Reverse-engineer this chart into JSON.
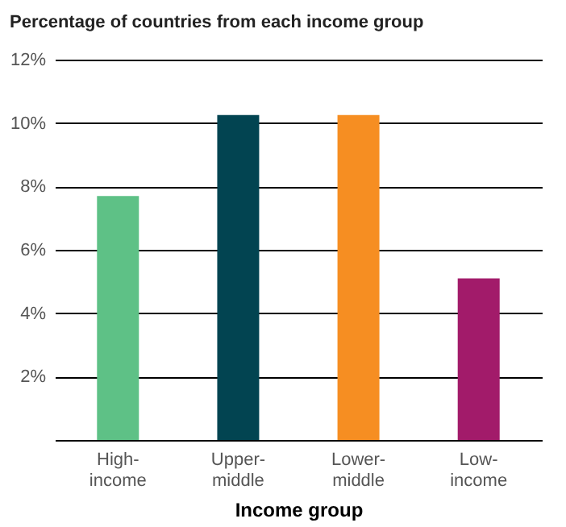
{
  "chart_data": {
    "type": "bar",
    "title": "Percentage of countries from each income group",
    "xlabel": "Income group",
    "categories": [
      "High-\nincome",
      "Upper-\nmiddle",
      "Lower-\nmiddle",
      "Low-\nincome"
    ],
    "values": [
      7.7,
      10.25,
      10.25,
      5.1
    ],
    "colors": [
      "#5ec186",
      "#024451",
      "#f68e22",
      "#a21b6a"
    ],
    "ylim": [
      0,
      12
    ],
    "yticks": [
      {
        "value": 0,
        "label": null
      },
      {
        "value": 2,
        "label": "2%"
      },
      {
        "value": 4,
        "label": "4%"
      },
      {
        "value": 6,
        "label": "6%"
      },
      {
        "value": 8,
        "label": "8%"
      },
      {
        "value": 10,
        "label": "10%"
      },
      {
        "value": 12,
        "label": "12%"
      }
    ],
    "grid": "y"
  }
}
